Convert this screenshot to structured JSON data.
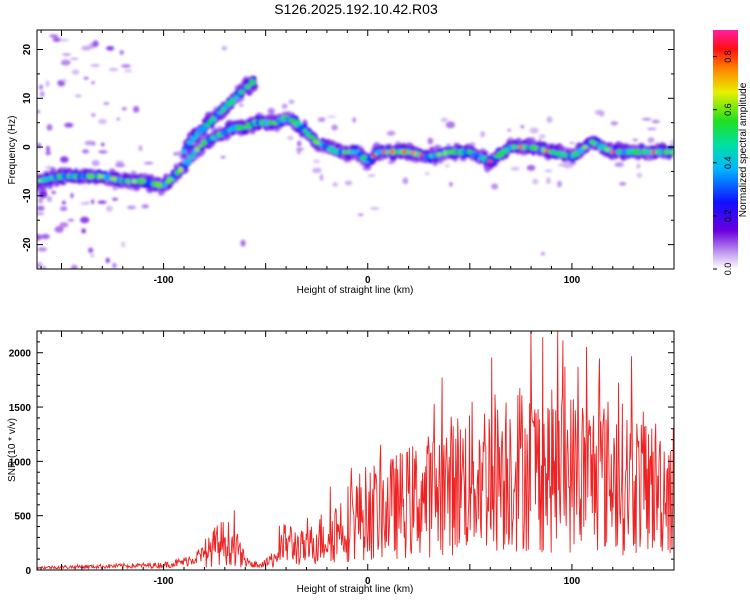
{
  "title": "S126.2025.192.10.42.R03",
  "chart_data": [
    {
      "type": "heatmap",
      "xlabel": "Height of straight line (km)",
      "ylabel": "Frequency (Hz)",
      "xlim": [
        -162,
        150
      ],
      "ylim": [
        -25,
        24
      ],
      "xticks": [
        -100,
        0,
        100
      ],
      "yticks": [
        -20,
        -10,
        0,
        10,
        20
      ],
      "colorbar": {
        "label": "Normalized spectral amplitude",
        "range": [
          0.0,
          0.9
        ],
        "ticks": [
          "0.0",
          "0.2",
          "0.4",
          "0.6",
          "0.8"
        ],
        "colormap": "rainbow (white-violet-blue-cyan-green-yellow-red-magenta)"
      },
      "ridge": {
        "x": [
          -162,
          -150,
          -140,
          -130,
          -120,
          -110,
          -100,
          -95,
          -90,
          -85,
          -80,
          -75,
          -70,
          -65,
          -60,
          -55,
          -50,
          -45,
          -40,
          -35,
          -30,
          -25,
          -20,
          -15,
          -10,
          -5,
          0,
          5,
          10,
          20,
          30,
          40,
          50,
          60,
          70,
          80,
          90,
          100,
          110,
          120,
          130,
          140,
          150
        ],
        "y": [
          -7,
          -6,
          -6,
          -6,
          -7,
          -7,
          -8,
          -6,
          -4,
          -1,
          1,
          2,
          3,
          4,
          4,
          5,
          5,
          5,
          6,
          5,
          3,
          1,
          0,
          -1,
          -1,
          -1,
          -3,
          -1,
          -1,
          -1,
          -2,
          -1,
          -1,
          -3,
          0,
          0,
          -1,
          -2,
          1,
          -1,
          -1,
          -1,
          -1
        ]
      },
      "secondary_branch": {
        "x": [
          -90,
          -85,
          -80,
          -75,
          -70,
          -65,
          -60,
          -57,
          -55
        ],
        "y": [
          -1,
          2,
          4,
          6,
          8,
          10,
          12,
          13,
          14
        ]
      }
    },
    {
      "type": "line",
      "xlabel": "Height of straight line (km)",
      "ylabel": "SNR (10 * v/v)",
      "xlim": [
        -162,
        150
      ],
      "ylim": [
        0,
        2200
      ],
      "xticks": [
        -100,
        0,
        100
      ],
      "yticks": [
        0,
        500,
        1000,
        1500,
        2000
      ],
      "color": "#ee2222",
      "envelope": {
        "x": [
          -162,
          -140,
          -120,
          -100,
          -90,
          -80,
          -75,
          -70,
          -65,
          -60,
          -55,
          -50,
          -45,
          -40,
          -35,
          -30,
          -25,
          -20,
          -15,
          -10,
          -5,
          0,
          10,
          20,
          30,
          40,
          50,
          60,
          70,
          80,
          90,
          100,
          110,
          120,
          130,
          140,
          150
        ],
        "y": [
          30,
          40,
          50,
          60,
          100,
          200,
          350,
          420,
          350,
          120,
          70,
          80,
          200,
          420,
          350,
          300,
          450,
          500,
          600,
          700,
          800,
          850,
          900,
          1000,
          1100,
          1250,
          1350,
          1450,
          1550,
          1500,
          1450,
          1450,
          1400,
          1400,
          1300,
          1250,
          1200
        ]
      }
    }
  ]
}
